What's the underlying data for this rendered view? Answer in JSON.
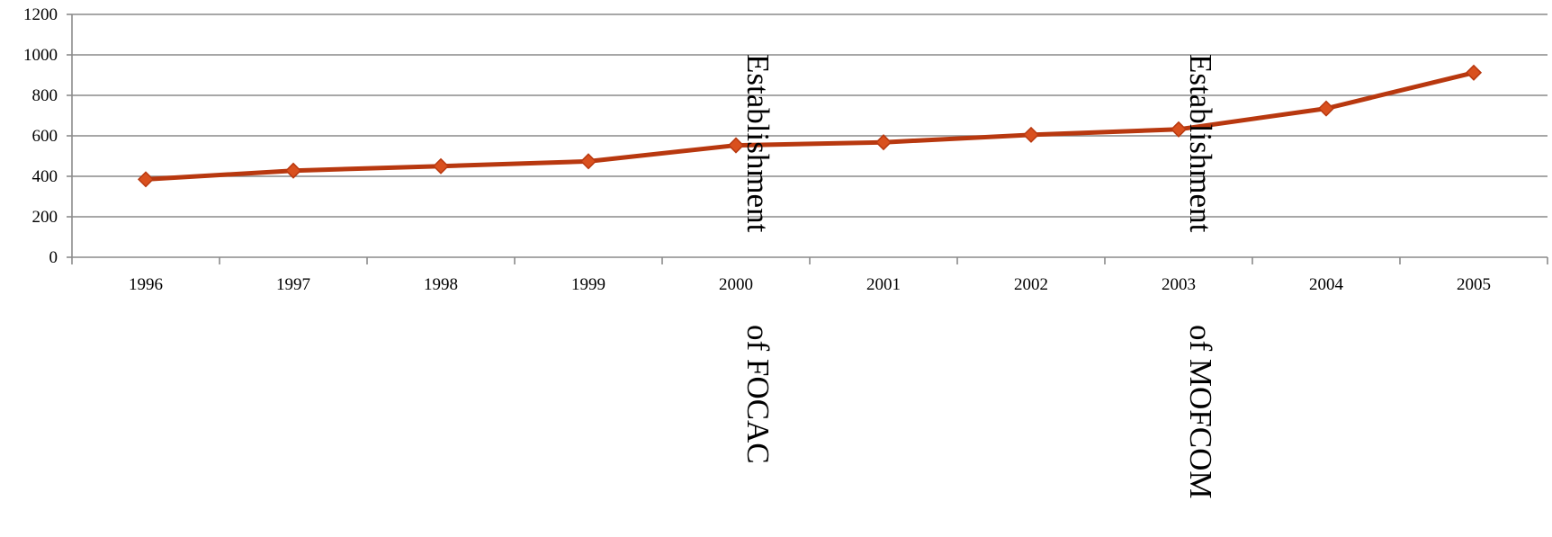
{
  "chart_data": {
    "type": "line",
    "title": "",
    "xlabel": "",
    "ylabel": "",
    "categories": [
      "1996",
      "1997",
      "1998",
      "1999",
      "2000",
      "2001",
      "2002",
      "2003",
      "2004",
      "2005"
    ],
    "series": [
      {
        "values": [
          385,
          428,
          450,
          474,
          553,
          568,
          605,
          632,
          735,
          912
        ],
        "color": "#b8380f",
        "marker_color": "#d9501e",
        "marker": "diamond"
      }
    ],
    "ylim": [
      0,
      1200
    ],
    "yticks": [
      0,
      200,
      400,
      600,
      800,
      1000,
      1200
    ],
    "grid": true,
    "legend": "none",
    "annotations": [
      {
        "x": "2000",
        "line1": "Establishment",
        "line2": "of FOCAC"
      },
      {
        "x": "2003",
        "line1": "Establishment",
        "line2": "of MOFCOM"
      }
    ]
  }
}
